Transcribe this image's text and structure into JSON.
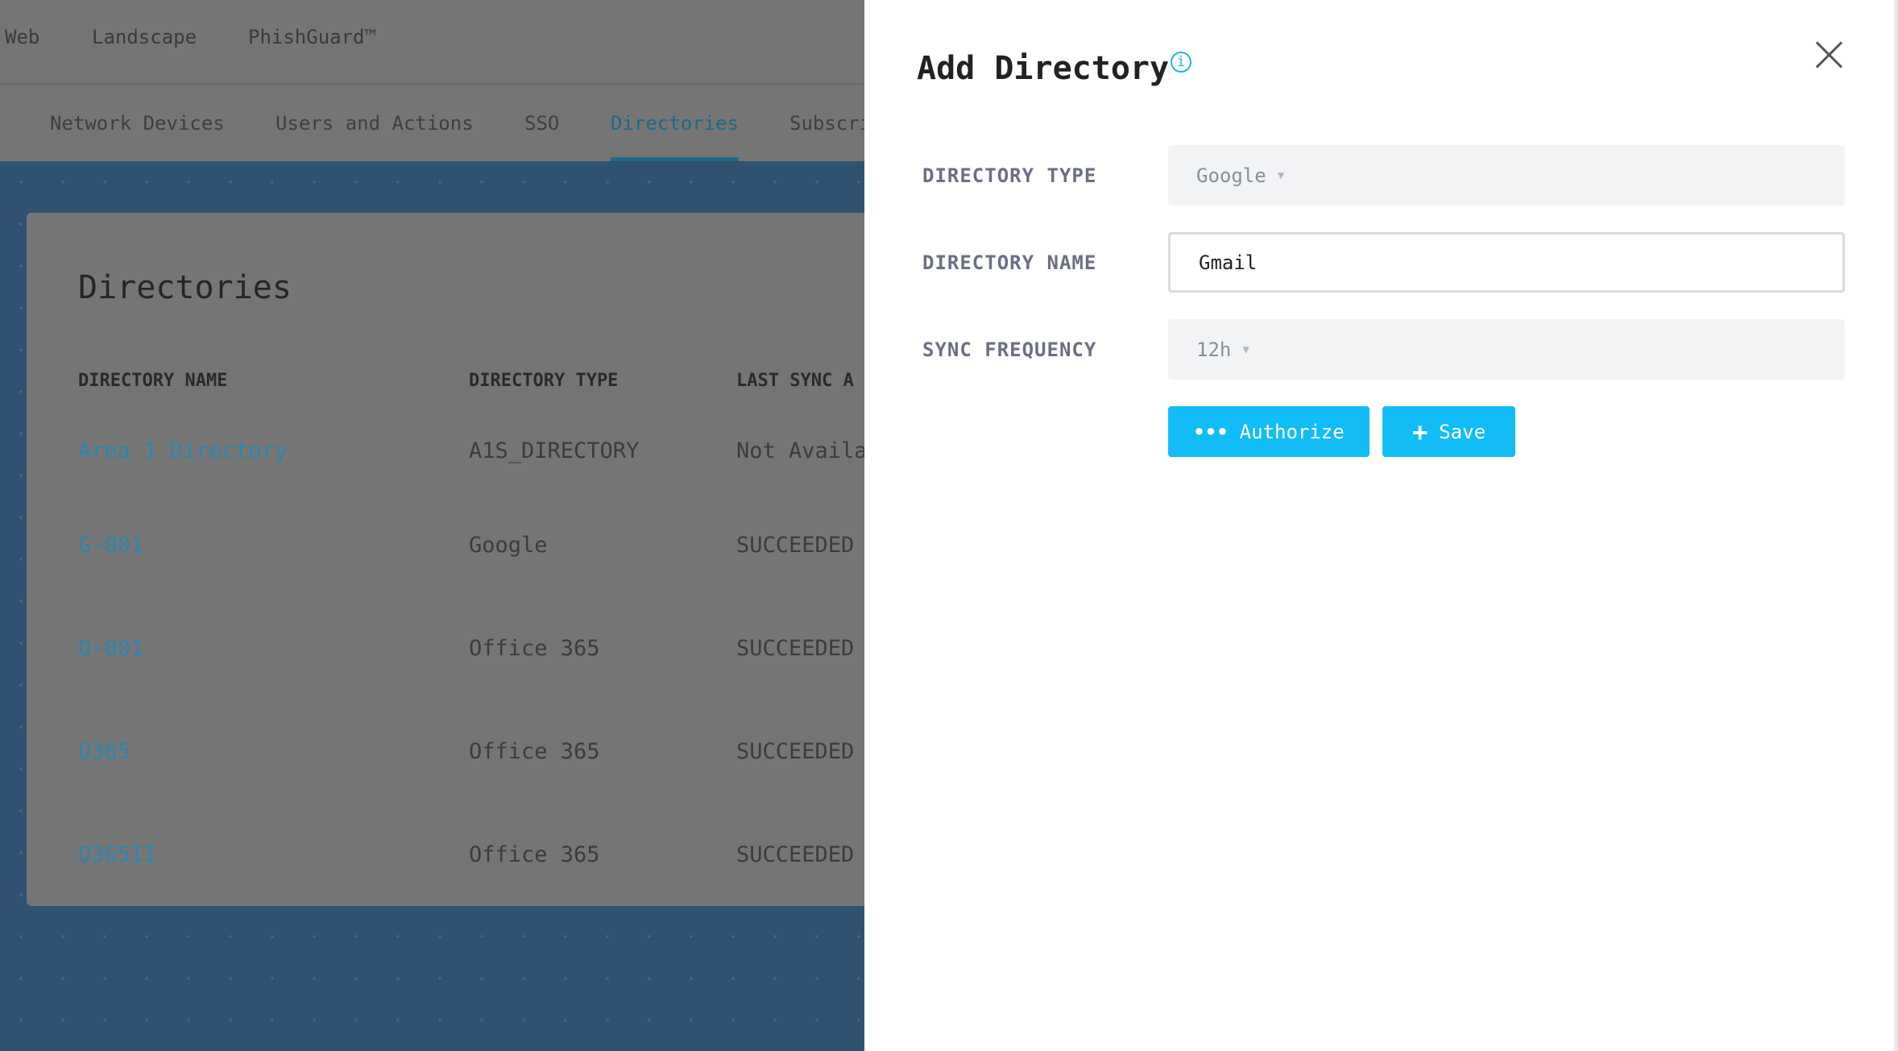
{
  "topnav": {
    "items": [
      "Web",
      "Landscape",
      "PhishGuard™"
    ]
  },
  "tabs": [
    {
      "label": "Network Devices",
      "active": false
    },
    {
      "label": "Users and Actions",
      "active": false
    },
    {
      "label": "SSO",
      "active": false
    },
    {
      "label": "Directories",
      "active": true
    },
    {
      "label": "Subscri",
      "active": false
    }
  ],
  "card": {
    "title": "Directories",
    "columns": [
      "DIRECTORY NAME",
      "DIRECTORY TYPE",
      "LAST SYNC A"
    ],
    "rows": [
      {
        "name": "Area 1 Directory",
        "type": "A1S_DIRECTORY",
        "sync": "Not Availa"
      },
      {
        "name": "G-001",
        "type": "Google",
        "sync": "SUCCEEDED"
      },
      {
        "name": "O-001",
        "type": "Office 365",
        "sync": "SUCCEEDED"
      },
      {
        "name": "O365",
        "type": "Office 365",
        "sync": "SUCCEEDED"
      },
      {
        "name": "O365II",
        "type": "Office 365",
        "sync": "SUCCEEDED"
      }
    ]
  },
  "panel": {
    "title": "Add Directory",
    "info_icon": "i",
    "directory_type_label": "DIRECTORY TYPE",
    "directory_type_value": "Google",
    "directory_name_label": "DIRECTORY NAME",
    "directory_name_value": "Gmail",
    "sync_frequency_label": "SYNC FREQUENCY",
    "sync_frequency_value": "12h",
    "caret": "▼",
    "authorize_icon": "•••",
    "authorize_label": "Authorize",
    "save_icon": "+",
    "save_label": "Save"
  },
  "colors": {
    "accent": "#12bdf7",
    "active_tab": "#1a93c4",
    "link": "#1fa3d8"
  }
}
